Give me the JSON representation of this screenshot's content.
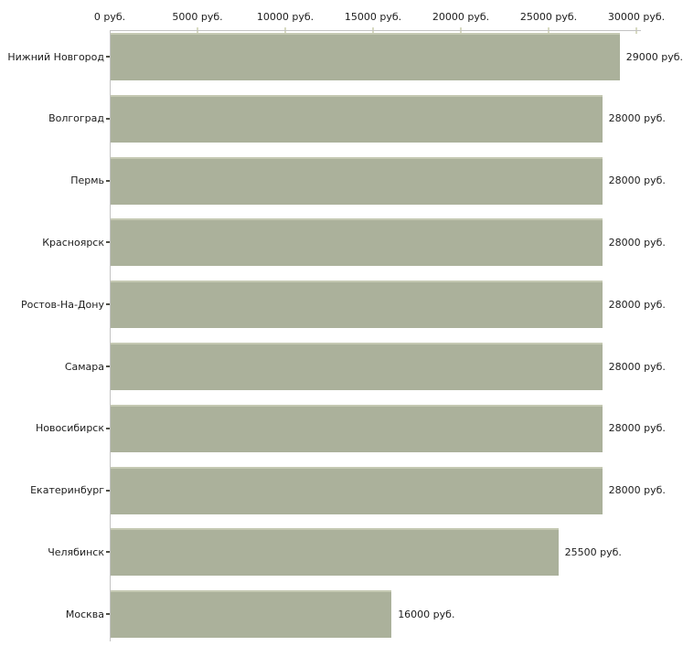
{
  "chart_data": {
    "type": "bar",
    "orientation": "horizontal",
    "title": "",
    "xlabel": "",
    "ylabel": "",
    "grid": false,
    "legend": false,
    "xlim": [
      0,
      30000
    ],
    "x_tick_values": [
      0,
      5000,
      10000,
      15000,
      20000,
      25000,
      30000
    ],
    "x_tick_labels": [
      "0 руб.",
      "5000 руб.",
      "10000 руб.",
      "15000 руб.",
      "20000 руб.",
      "25000 руб.",
      "30000 руб."
    ],
    "categories": [
      "Нижний Новгород",
      "Волгоград",
      "Пермь",
      "Красноярск",
      "Ростов-На-Дону",
      "Самара",
      "Новосибирск",
      "Екатеринбург",
      "Челябинск",
      "Москва"
    ],
    "values": [
      29000,
      28000,
      28000,
      28000,
      28000,
      28000,
      28000,
      28000,
      25500,
      16000
    ],
    "value_labels": [
      "29000 руб.",
      "28000 руб.",
      "28000 руб.",
      "28000 руб.",
      "28000 руб.",
      "28000 руб.",
      "28000 руб.",
      "28000 руб.",
      "25500 руб.",
      "16000 руб."
    ],
    "colors": {
      "bar_fill": "#abb19b",
      "bar_top_edge": "#c5c9b3",
      "axis_line": "#c3c3c3",
      "axis_tick": "#d8dac2",
      "category_tick": "#4f4f47",
      "text": "#1c1c1c",
      "background": "#ffffff"
    }
  }
}
